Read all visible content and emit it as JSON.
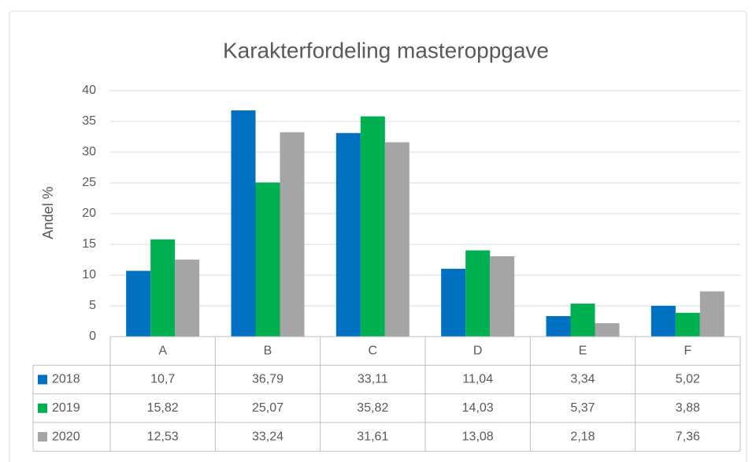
{
  "chart_data": {
    "type": "bar",
    "title": "Karakterfordeling masteroppgave",
    "y_label": "Andel %",
    "categories": [
      "A",
      "B",
      "C",
      "D",
      "E",
      "F"
    ],
    "series": [
      {
        "name": "2018",
        "color": "#0070c0",
        "values": [
          10.7,
          36.79,
          33.11,
          11.04,
          3.34,
          5.02
        ],
        "value_labels": [
          "10,7",
          "36,79",
          "33,11",
          "11,04",
          "3,34",
          "5,02"
        ]
      },
      {
        "name": "2019",
        "color": "#00b050",
        "values": [
          15.82,
          25.07,
          35.82,
          14.03,
          5.37,
          3.88
        ],
        "value_labels": [
          "15,82",
          "25,07",
          "35,82",
          "14,03",
          "5,37",
          "3,88"
        ]
      },
      {
        "name": "2020",
        "color": "#a5a5a5",
        "values": [
          12.53,
          33.24,
          31.61,
          13.08,
          2.18,
          7.36
        ],
        "value_labels": [
          "12,53",
          "33,24",
          "31,61",
          "13,08",
          "2,18",
          "7,36"
        ]
      }
    ],
    "ylim": [
      0,
      40
    ],
    "yticks": [
      0,
      5,
      10,
      15,
      20,
      25,
      30,
      35,
      40
    ],
    "grid": true,
    "data_table": true
  }
}
